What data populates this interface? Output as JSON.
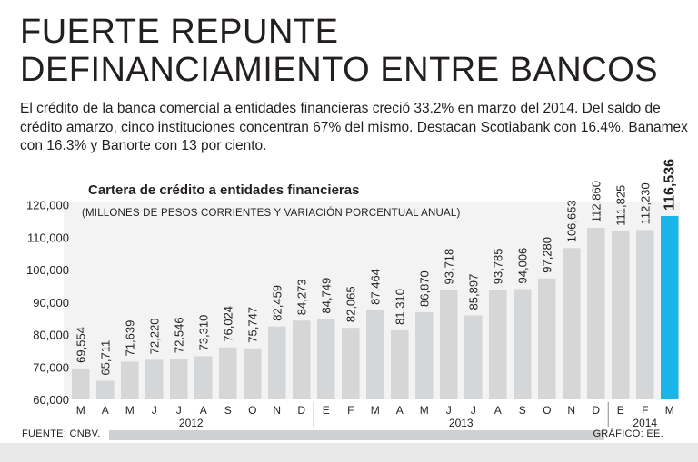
{
  "headline": "FUERTE REPUNTE DEFINANCIAMIENTO ENTRE BANCOS",
  "lead": "El crédito de la banca comercial a entidades financieras creció 33.2% en marzo del 2014. Del saldo de crédito amarzo, cinco instituciones concentran 67% del mismo. Destacan Scotiabank con 16.4%, Banamex con 16.3% y Banorte con 13 por ciento.",
  "source": "FUENTE: CNBV.",
  "credit": "GRÁFICO: EE.",
  "colors": {
    "bar": "#d5d6d7",
    "highlight": "#1ab4e6",
    "separator": "#8a8a8a",
    "bottom_band": "#e9e9ea"
  },
  "chart_data": {
    "type": "bar",
    "title": "Cartera de crédito a entidades financieras",
    "subtitle": "(MILLONES DE PESOS CORRIENTES Y VARIACIÓN PORCENTUAL ANUAL)",
    "categories": [
      "M",
      "A",
      "M",
      "J",
      "J",
      "A",
      "S",
      "O",
      "N",
      "D",
      "E",
      "F",
      "M",
      "A",
      "M",
      "J",
      "J",
      "A",
      "S",
      "O",
      "N",
      "D",
      "E",
      "F",
      "M"
    ],
    "values": [
      69554,
      65711,
      71639,
      72220,
      72546,
      73310,
      76024,
      75747,
      82459,
      84273,
      84749,
      82065,
      87464,
      81310,
      86870,
      93718,
      85897,
      93785,
      94006,
      97280,
      106653,
      112860,
      111825,
      112230,
      116536
    ],
    "value_labels": [
      "69,554",
      "65,711",
      "71,639",
      "72,220",
      "72,546",
      "73,310",
      "76,024",
      "75,747",
      "82,459",
      "84,273",
      "84,749",
      "82,065",
      "87,464",
      "81,310",
      "86,870",
      "93,718",
      "85,897",
      "93,785",
      "94,006",
      "97,280",
      "106,653",
      "112,860",
      "111,825",
      "112,230",
      "116,536"
    ],
    "highlight_index": 24,
    "years": [
      {
        "label": "2012",
        "start": 0,
        "end": 9
      },
      {
        "label": "2013",
        "start": 10,
        "end": 21
      },
      {
        "label": "2014",
        "start": 22,
        "end": 24
      }
    ],
    "yticks": [
      60000,
      70000,
      80000,
      90000,
      100000,
      110000,
      120000
    ],
    "ytick_labels": [
      "60,000",
      "70,000",
      "80,000",
      "90,000",
      "100,000",
      "110,000",
      "120,000"
    ],
    "ylim": [
      60000,
      121000
    ],
    "grid": false,
    "legend": "none"
  }
}
